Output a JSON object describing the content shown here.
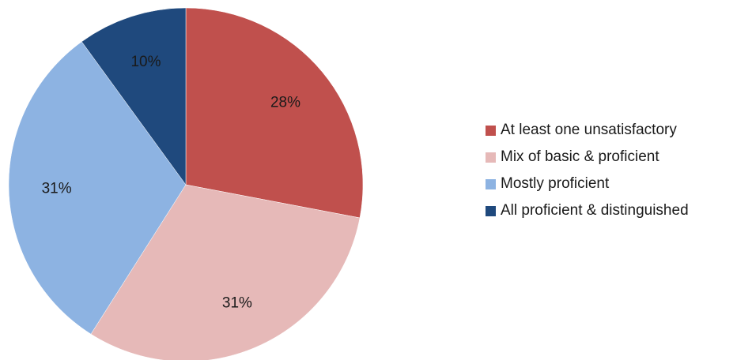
{
  "chart_data": {
    "type": "pie",
    "title": "",
    "start_angle_deg": 0,
    "direction": "clockwise",
    "slices": [
      {
        "label": "At least one unsatisfactory",
        "value": 28,
        "display": "28%",
        "color": "#c0504d"
      },
      {
        "label": "Mix of basic & proficient",
        "value": 31,
        "display": "31%",
        "color": "#e6b9b8"
      },
      {
        "label": "Mostly proficient",
        "value": 31,
        "display": "31%",
        "color": "#8db3e2"
      },
      {
        "label": "All proficient & distinguished",
        "value": 10,
        "display": "10%",
        "color": "#1f497d"
      }
    ],
    "legend_position": "right"
  }
}
